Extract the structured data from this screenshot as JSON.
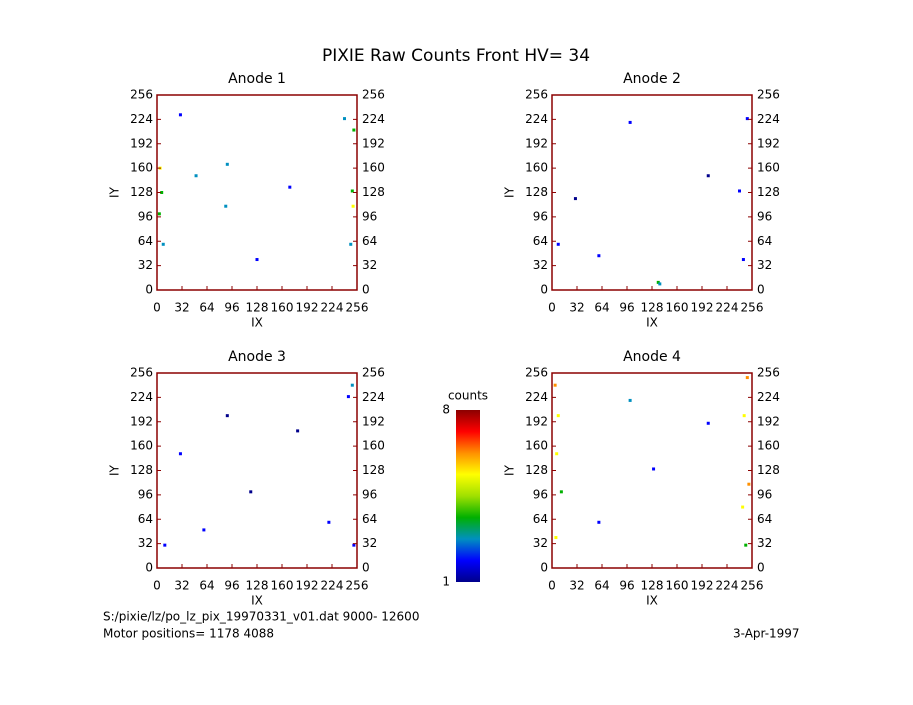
{
  "title": "PIXIE Raw Counts Front HV= 34",
  "chart_data": [
    {
      "type": "heatmap",
      "title": "Anode 1",
      "xlabel": "IX",
      "ylabel": "IY",
      "xlim": [
        0,
        256
      ],
      "ylim": [
        0,
        256
      ],
      "xticks": [
        0,
        32,
        64,
        96,
        128,
        160,
        192,
        224,
        256
      ],
      "yticks": [
        0,
        32,
        64,
        96,
        128,
        160,
        192,
        224,
        256
      ],
      "x": [
        4,
        6,
        3,
        8,
        250,
        252,
        248,
        251,
        90,
        88,
        50,
        170,
        128,
        240,
        30
      ],
      "y": [
        160,
        128,
        100,
        60,
        130,
        210,
        60,
        110,
        165,
        110,
        150,
        135,
        40,
        225,
        230
      ],
      "values": [
        5,
        4,
        4,
        3,
        4,
        4,
        3,
        5,
        3,
        3,
        3,
        2,
        2,
        3,
        2
      ]
    },
    {
      "type": "heatmap",
      "title": "Anode 2",
      "xlabel": "IX",
      "ylabel": "IY",
      "xlim": [
        0,
        256
      ],
      "ylim": [
        0,
        256
      ],
      "xticks": [
        0,
        32,
        64,
        96,
        128,
        160,
        192,
        224,
        256
      ],
      "yticks": [
        0,
        32,
        64,
        96,
        128,
        160,
        192,
        224,
        256
      ],
      "x": [
        136,
        138,
        250,
        245,
        8,
        60,
        200,
        100,
        30,
        240
      ],
      "y": [
        10,
        8,
        225,
        40,
        60,
        45,
        150,
        220,
        120,
        130
      ],
      "values": [
        4,
        3,
        2,
        2,
        2,
        2,
        1,
        2,
        1,
        2
      ]
    },
    {
      "type": "heatmap",
      "title": "Anode 3",
      "xlabel": "IX",
      "ylabel": "IY",
      "xlim": [
        0,
        256
      ],
      "ylim": [
        0,
        256
      ],
      "xticks": [
        0,
        32,
        64,
        96,
        128,
        160,
        192,
        224,
        256
      ],
      "yticks": [
        0,
        32,
        64,
        96,
        128,
        160,
        192,
        224,
        256
      ],
      "x": [
        250,
        245,
        252,
        10,
        60,
        120,
        180,
        90,
        30,
        220
      ],
      "y": [
        240,
        225,
        30,
        30,
        50,
        100,
        180,
        200,
        150,
        60
      ],
      "values": [
        3,
        2,
        2,
        2,
        2,
        1,
        1,
        1,
        2,
        2
      ]
    },
    {
      "type": "heatmap",
      "title": "Anode 4",
      "xlabel": "IX",
      "ylabel": "IY",
      "xlim": [
        0,
        256
      ],
      "ylim": [
        0,
        256
      ],
      "xticks": [
        0,
        32,
        64,
        96,
        128,
        160,
        192,
        224,
        256
      ],
      "yticks": [
        0,
        32,
        64,
        96,
        128,
        160,
        192,
        224,
        256
      ],
      "x": [
        4,
        8,
        6,
        12,
        5,
        250,
        246,
        252,
        244,
        248,
        60,
        130,
        200,
        100
      ],
      "y": [
        240,
        200,
        150,
        100,
        40,
        250,
        200,
        110,
        80,
        30,
        60,
        130,
        190,
        220
      ],
      "values": [
        6,
        5,
        5,
        4,
        5,
        6,
        5,
        6,
        5,
        4,
        2,
        2,
        2,
        3
      ]
    }
  ],
  "colorbar": {
    "label": "counts",
    "lim": [
      1,
      8
    ],
    "ticks": [
      1,
      8
    ],
    "colors": [
      "#00008b",
      "#0000ff",
      "#0090c0",
      "#00b000",
      "#a0e000",
      "#ffff00",
      "#ff9000",
      "#ff0000",
      "#8b0000"
    ]
  },
  "footer": {
    "file": "S:/pixie/lz/po_lz_pix_19970331_v01.dat   9000- 12600",
    "motor": "Motor positions= 1178 4088",
    "date": "3-Apr-1997"
  }
}
